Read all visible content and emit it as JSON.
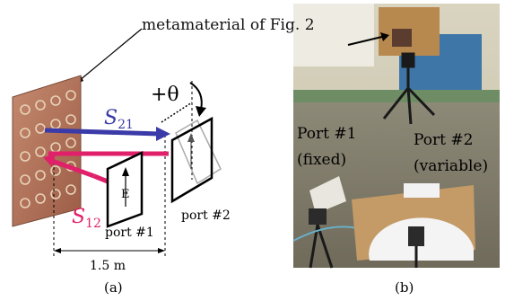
{
  "figure": {
    "annotation_metamaterial": "metamaterial of Fig. 2",
    "panel_a": {
      "caption": "(a)",
      "s21_main": "S",
      "s21_sub": "21",
      "s12_main": "S",
      "s12_sub": "12",
      "theta": "+θ",
      "port1": "port #1",
      "port2": "port #2",
      "e_field": "E",
      "distance": "1.5 m"
    },
    "panel_b": {
      "caption": "(b)",
      "port1_line1": "Port #1",
      "port1_line2": "(fixed)",
      "port2_line1": "Port #2",
      "port2_line2": "(variable)"
    },
    "colors": {
      "s21": "#3a3aa8",
      "s12": "#e0206a",
      "board": "#b0705a"
    }
  }
}
